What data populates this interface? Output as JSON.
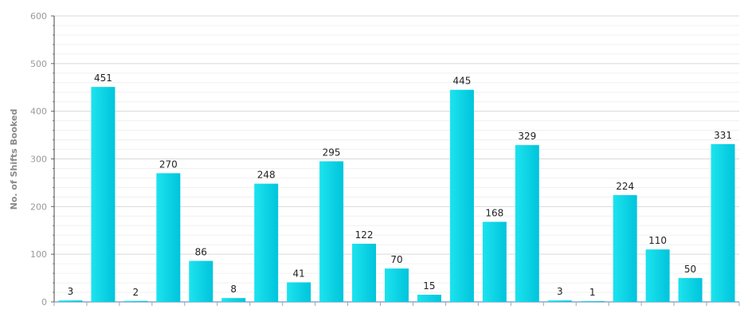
{
  "chart_data": {
    "type": "bar",
    "title": "",
    "xlabel": "",
    "ylabel": "No. of Shifts Booked",
    "ylim": [
      0,
      600
    ],
    "yticks": [
      0,
      100,
      200,
      300,
      400,
      500,
      600
    ],
    "grid": true,
    "values": [
      3,
      451,
      2,
      270,
      86,
      8,
      248,
      41,
      295,
      122,
      70,
      15,
      445,
      168,
      329,
      3,
      1,
      224,
      110,
      50,
      331
    ],
    "colors": {
      "bar_light": "#22e6ef",
      "bar_dark": "#00b9d6",
      "axis": "#8fa8c8",
      "grid": "#d9d9d9",
      "minor_grid": "#f0f0f0"
    }
  }
}
